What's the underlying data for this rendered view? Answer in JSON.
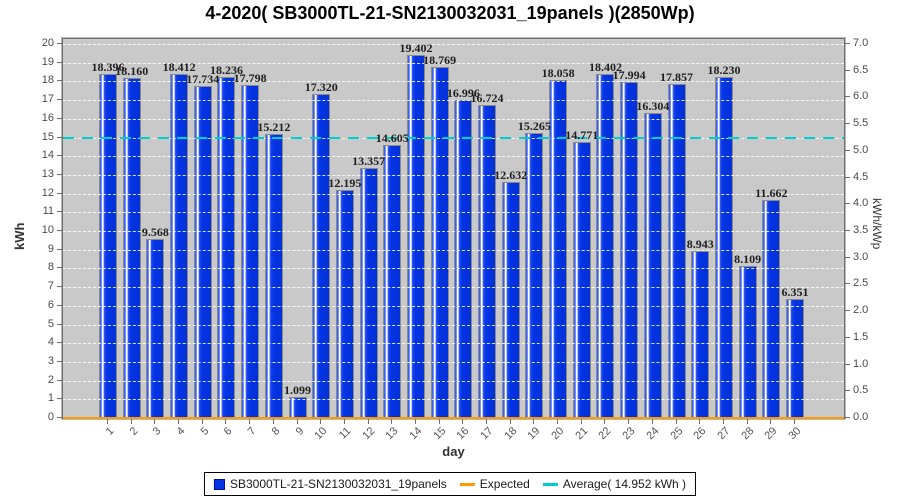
{
  "title": "4-2020( SB3000TL-21-SN2130032031_19panels )(2850Wp)",
  "chart_data": {
    "type": "bar",
    "title": "4-2020( SB3000TL-21-SN2130032031_19panels )(2850Wp)",
    "xlabel": "day",
    "ylabel_left": "kWh",
    "ylabel_right": "kWh/kWp",
    "ylim_left": [
      0,
      20
    ],
    "ylim_right": [
      0,
      7
    ],
    "y_left_tick_step": 1,
    "y_right_tick_step": 0.5,
    "grid": "horizontal white dashed lines every 1 kWh",
    "legend_position": "bottom",
    "plot_bg_color": "#C9C9C9",
    "grid_color": "#FFFFFF",
    "categories": [
      "1",
      "2",
      "3",
      "4",
      "5",
      "6",
      "7",
      "8",
      "9",
      "10",
      "11",
      "12",
      "13",
      "14",
      "15",
      "16",
      "17",
      "18",
      "19",
      "20",
      "21",
      "22",
      "23",
      "24",
      "25",
      "26",
      "27",
      "28",
      "29",
      "30"
    ],
    "series": [
      {
        "name": "SB3000TL-21-SN2130032031_19panels",
        "color": "#0535E6",
        "values": [
          "18.396",
          "18.160",
          "9.568",
          "18.412",
          "17.734",
          "18.236",
          "17.798",
          "15.212",
          "1.099",
          "17.320",
          "12.195",
          "13.357",
          "14.605",
          "19.402",
          "18.769",
          "16.996",
          "16.724",
          "12.632",
          "15.265",
          "18.058",
          "14.771",
          "18.402",
          "17.994",
          "16.304",
          "17.857",
          "8.943",
          "18.230",
          "8.109",
          "11.662",
          "6.351"
        ]
      }
    ],
    "expected_line": {
      "name": "Expected",
      "value": 0,
      "color": "#FF9900"
    },
    "average_line": {
      "name": "Average( 14.952 kWh )",
      "value": 14.952,
      "color": "#00CDCD"
    },
    "legend": {
      "items": [
        {
          "swatch": "square",
          "color": "#0535E6",
          "label": "SB3000TL-21-SN2130032031_19panels"
        },
        {
          "swatch": "dash",
          "color": "#FF9900",
          "label": "Expected"
        },
        {
          "swatch": "dash",
          "color": "#00CDCD",
          "label": "Average( 14.952 kWh )"
        }
      ]
    }
  }
}
